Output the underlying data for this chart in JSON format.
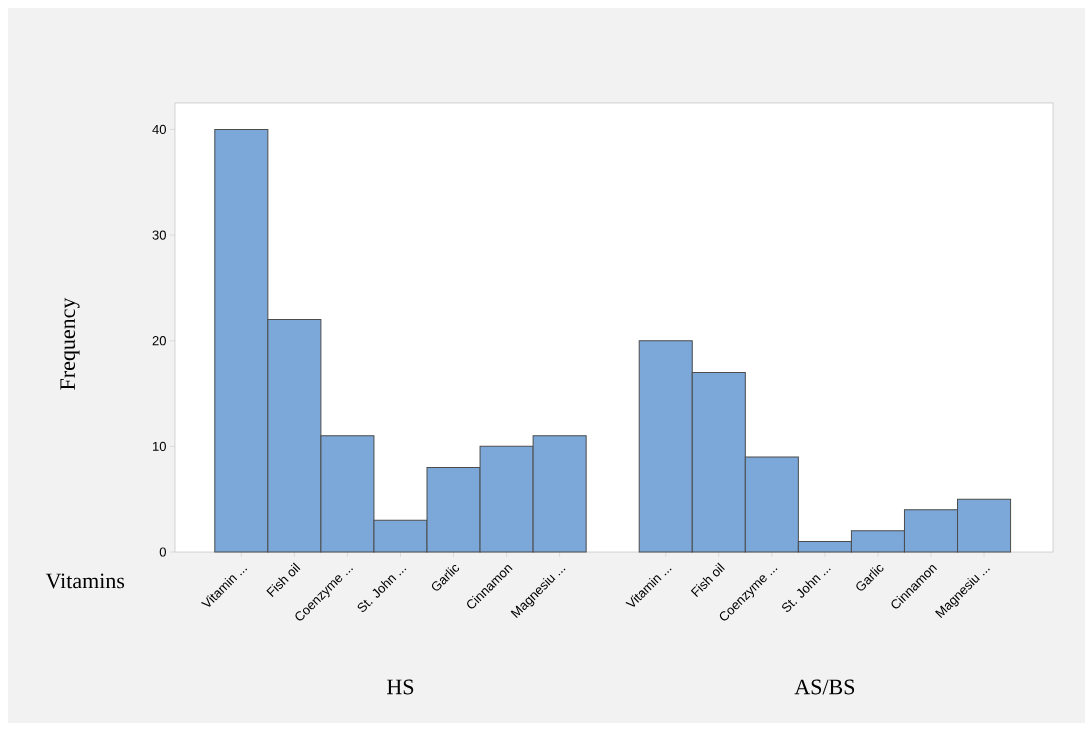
{
  "chart_data": {
    "type": "bar",
    "xlabel": "Vitamins",
    "ylabel": "Frequency",
    "categories": [
      "Vitamin ...",
      "Fish oil",
      "Coenzyme ...",
      "St. John ...",
      "Garlic",
      "Cinnamon",
      "Magnesiu ...",
      null,
      "Vitamin ...",
      "Fish oil",
      "Coenzyme ...",
      "St. John ...",
      "Garlic",
      "Cinnamon",
      "Magnesiu ..."
    ],
    "values": [
      40,
      22,
      11,
      3,
      8,
      10,
      11,
      null,
      20,
      17,
      9,
      1,
      2,
      4,
      5
    ],
    "color": "#7ba7d9",
    "ylim": [
      0,
      42.5
    ],
    "yticks": [
      0,
      10,
      20,
      30,
      40
    ],
    "annotations": [
      "HS",
      "AS/BS"
    ]
  }
}
